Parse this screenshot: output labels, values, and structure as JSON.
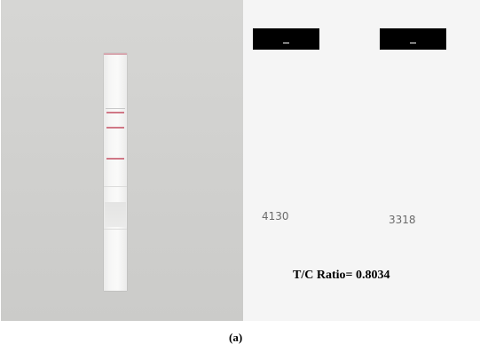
{
  "readings": {
    "left_value": "4130",
    "right_value": "3318"
  },
  "result": {
    "ratio_text": "T/C Ratio= 0.8034"
  },
  "figure": {
    "caption": "(a)"
  },
  "colors": {
    "strip_line": "#d07886",
    "photo_background": "#d3d3d1",
    "panel_background": "#f5f5f5",
    "label_box": "#000000"
  }
}
